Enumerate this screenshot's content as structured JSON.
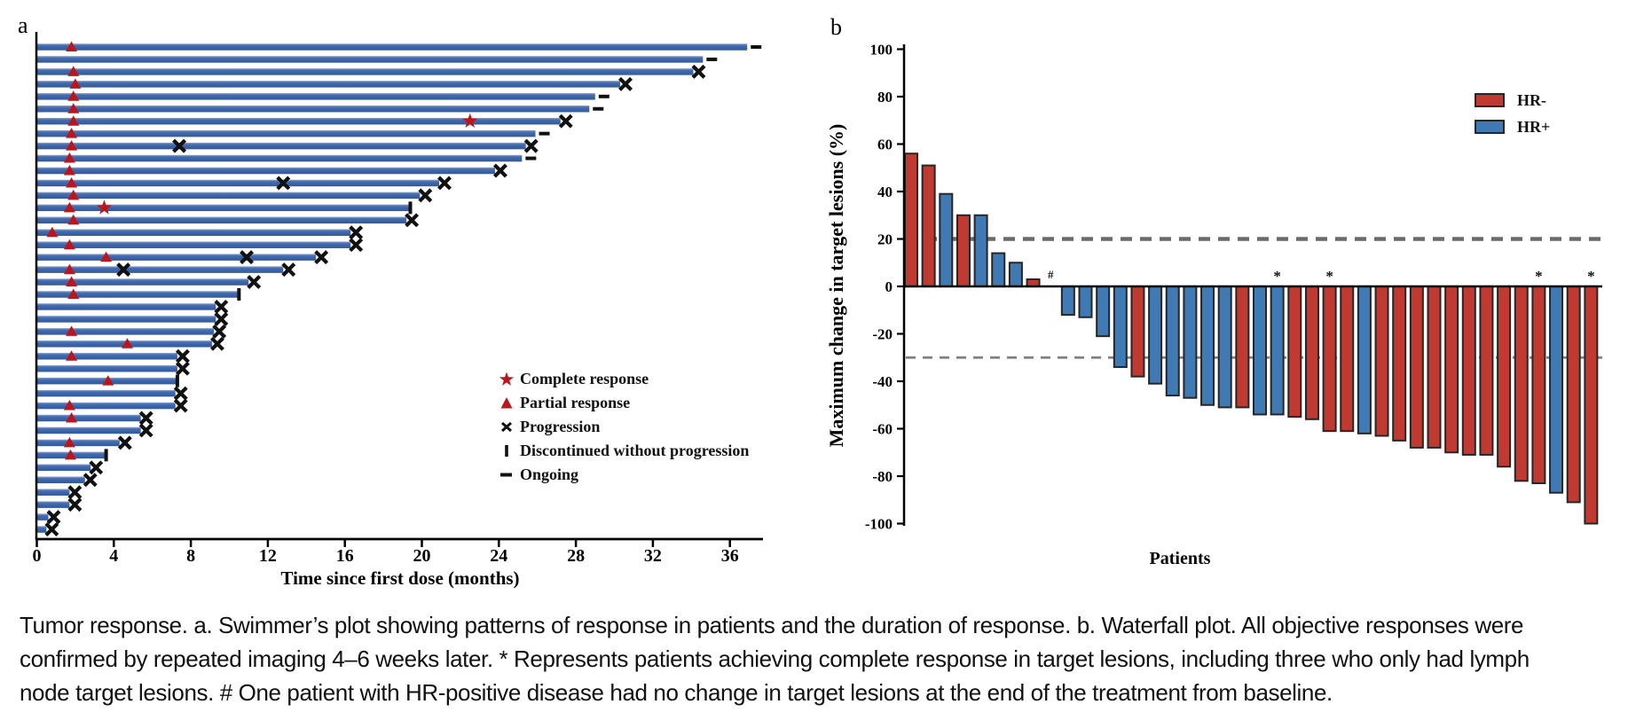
{
  "figure": {
    "panel_a_label": "a",
    "panel_b_label": "b"
  },
  "caption": {
    "lines": [
      "Tumor response. a. Swimmer’s plot showing patterns of response in patients and the duration of response. b. Waterfall plot. All objective responses were",
      "confirmed by repeated imaging 4–6 weeks later. * Represents patients achieving complete response in target lesions, including three who only had lymph",
      "node target lesions. # One patient with HR-positive disease had no change in target lesions at the end of the treatment from baseline."
    ]
  },
  "chart_data": [
    {
      "id": "swimmer_plot",
      "type": "bar",
      "orientation": "horizontal",
      "panel": "a",
      "xlabel": "Time since first dose (months)",
      "xticks": [
        0,
        4,
        8,
        12,
        16,
        20,
        24,
        28,
        32,
        36
      ],
      "xlim": [
        0,
        37.5
      ],
      "grid": false,
      "colors": {
        "bar": "#3a63a8",
        "response_marker": "#bb161d",
        "event_marker": "#111111"
      },
      "legend_position": "inside-right",
      "legend": [
        {
          "marker": "star",
          "label": "Complete response",
          "color": "#bb161d"
        },
        {
          "marker": "triangle",
          "label": "Partial response",
          "color": "#bb161d"
        },
        {
          "marker": "x",
          "label": "Progression",
          "color": "#111111"
        },
        {
          "marker": "bar",
          "label": "Discontinued without progression",
          "color": "#111111"
        },
        {
          "marker": "dash",
          "label": "Ongoing",
          "color": "#111111"
        }
      ],
      "patients": [
        {
          "duration": 36.9,
          "partial_response_at": 1.8,
          "end_marker": "ongoing"
        },
        {
          "duration": 34.6,
          "end_marker": "ongoing"
        },
        {
          "duration": 34.1,
          "partial_response_at": 1.9,
          "end_marker": "progression"
        },
        {
          "duration": 30.3,
          "partial_response_at": 2.0,
          "end_marker": "progression"
        },
        {
          "duration": 29.0,
          "partial_response_at": 1.9,
          "end_marker": "ongoing"
        },
        {
          "duration": 28.7,
          "partial_response_at": 1.9,
          "end_marker": "ongoing"
        },
        {
          "duration": 27.2,
          "partial_response_at": 1.9,
          "complete_response_at": 22.5,
          "end_marker": "progression"
        },
        {
          "duration": 25.9,
          "partial_response_at": 1.8,
          "end_marker": "ongoing"
        },
        {
          "duration": 25.4,
          "partial_response_at": 1.8,
          "progression_at": [
            7.4
          ],
          "end_marker": "progression"
        },
        {
          "duration": 25.2,
          "partial_response_at": 1.7,
          "end_marker": "ongoing"
        },
        {
          "duration": 23.8,
          "partial_response_at": 1.7,
          "end_marker": "progression"
        },
        {
          "duration": 20.9,
          "partial_response_at": 1.8,
          "progression_at": [
            12.8
          ],
          "end_marker": "progression"
        },
        {
          "duration": 19.9,
          "partial_response_at": 1.9,
          "end_marker": "progression"
        },
        {
          "duration": 19.4,
          "partial_response_at": 1.7,
          "complete_response_at": 3.5,
          "end_marker": "discontinued"
        },
        {
          "duration": 19.2,
          "partial_response_at": 1.9,
          "end_marker": "progression"
        },
        {
          "duration": 16.3,
          "partial_response_at": 0.8,
          "end_marker": "progression"
        },
        {
          "duration": 16.3,
          "partial_response_at": 1.7,
          "end_marker": "progression"
        },
        {
          "duration": 14.5,
          "partial_response_at": 3.6,
          "progression_at": [
            10.9
          ],
          "end_marker": "progression"
        },
        {
          "duration": 12.8,
          "partial_response_at": 1.7,
          "progression_at": [
            4.5
          ],
          "end_marker": "progression"
        },
        {
          "duration": 11.0,
          "partial_response_at": 1.8,
          "end_marker": "progression"
        },
        {
          "duration": 10.5,
          "partial_response_at": 1.9,
          "end_marker": "discontinued"
        },
        {
          "duration": 9.3,
          "end_marker": "progression"
        },
        {
          "duration": 9.3,
          "end_marker": "progression"
        },
        {
          "duration": 9.2,
          "partial_response_at": 1.8,
          "end_marker": "progression"
        },
        {
          "duration": 9.1,
          "partial_response_at": 4.7,
          "end_marker": "progression"
        },
        {
          "duration": 7.3,
          "partial_response_at": 1.8,
          "end_marker": "progression"
        },
        {
          "duration": 7.3,
          "end_marker": "progression"
        },
        {
          "duration": 7.3,
          "partial_response_at": 3.7,
          "end_marker": "discontinued"
        },
        {
          "duration": 7.2,
          "end_marker": "progression"
        },
        {
          "duration": 7.2,
          "partial_response_at": 1.7,
          "end_marker": "progression"
        },
        {
          "duration": 5.4,
          "partial_response_at": 1.8,
          "end_marker": "progression"
        },
        {
          "duration": 5.4,
          "end_marker": "progression"
        },
        {
          "duration": 4.3,
          "partial_response_at": 1.7,
          "end_marker": "progression"
        },
        {
          "duration": 3.6,
          "partial_response_at": 1.75,
          "end_marker": "discontinued"
        },
        {
          "duration": 2.8,
          "end_marker": "progression"
        },
        {
          "duration": 2.5,
          "end_marker": "progression"
        },
        {
          "duration": 1.7,
          "end_marker": "progression"
        },
        {
          "duration": 1.7,
          "end_marker": "progression"
        },
        {
          "duration": 0.6,
          "end_marker": "progression"
        },
        {
          "duration": 0.5,
          "end_marker": "progression"
        }
      ]
    },
    {
      "id": "waterfall_plot",
      "type": "bar",
      "panel": "b",
      "xlabel": "Patients",
      "ylabel": "Maximum change in target lesions (%)",
      "yticks": [
        100,
        80,
        60,
        40,
        20,
        0,
        -20,
        -40,
        -60,
        -80,
        -100
      ],
      "ylim": [
        -100,
        100
      ],
      "grid": false,
      "reference_lines": [
        20,
        -30
      ],
      "colors": {
        "hr_negative": "#c03a31",
        "hr_positive": "#3f7ab5",
        "ref_line": "#6b6b6b",
        "bar_outline": "#262626"
      },
      "legend_position": "top-right",
      "legend": [
        {
          "label": "HR-",
          "color": "#c03a31"
        },
        {
          "label": "HR+",
          "color": "#3f7ab5"
        }
      ],
      "patients": [
        {
          "value": 56,
          "group": "HR-"
        },
        {
          "value": 51,
          "group": "HR-"
        },
        {
          "value": 39,
          "group": "HR+"
        },
        {
          "value": 30,
          "group": "HR-"
        },
        {
          "value": 30,
          "group": "HR+"
        },
        {
          "value": 14,
          "group": "HR+"
        },
        {
          "value": 10,
          "group": "HR+"
        },
        {
          "value": 3,
          "group": "HR-"
        },
        {
          "value": 0,
          "group": "HR+",
          "annotation": "#"
        },
        {
          "value": -12,
          "group": "HR+"
        },
        {
          "value": -13,
          "group": "HR+"
        },
        {
          "value": -21,
          "group": "HR+"
        },
        {
          "value": -34,
          "group": "HR+"
        },
        {
          "value": -38,
          "group": "HR-"
        },
        {
          "value": -41,
          "group": "HR+"
        },
        {
          "value": -46,
          "group": "HR+"
        },
        {
          "value": -47,
          "group": "HR+"
        },
        {
          "value": -50,
          "group": "HR+"
        },
        {
          "value": -51,
          "group": "HR+"
        },
        {
          "value": -51,
          "group": "HR-"
        },
        {
          "value": -54,
          "group": "HR+"
        },
        {
          "value": -54,
          "group": "HR+",
          "annotation": "*"
        },
        {
          "value": -55,
          "group": "HR-"
        },
        {
          "value": -56,
          "group": "HR-"
        },
        {
          "value": -61,
          "group": "HR-",
          "annotation": "*"
        },
        {
          "value": -61,
          "group": "HR-"
        },
        {
          "value": -62,
          "group": "HR+"
        },
        {
          "value": -63,
          "group": "HR-"
        },
        {
          "value": -65,
          "group": "HR-"
        },
        {
          "value": -68,
          "group": "HR-"
        },
        {
          "value": -68,
          "group": "HR-"
        },
        {
          "value": -70,
          "group": "HR-"
        },
        {
          "value": -71,
          "group": "HR-"
        },
        {
          "value": -71,
          "group": "HR-"
        },
        {
          "value": -76,
          "group": "HR-"
        },
        {
          "value": -82,
          "group": "HR-"
        },
        {
          "value": -83,
          "group": "HR-",
          "annotation": "*"
        },
        {
          "value": -87,
          "group": "HR+"
        },
        {
          "value": -91,
          "group": "HR-"
        },
        {
          "value": -100,
          "group": "HR-",
          "annotation": "*"
        }
      ]
    }
  ]
}
